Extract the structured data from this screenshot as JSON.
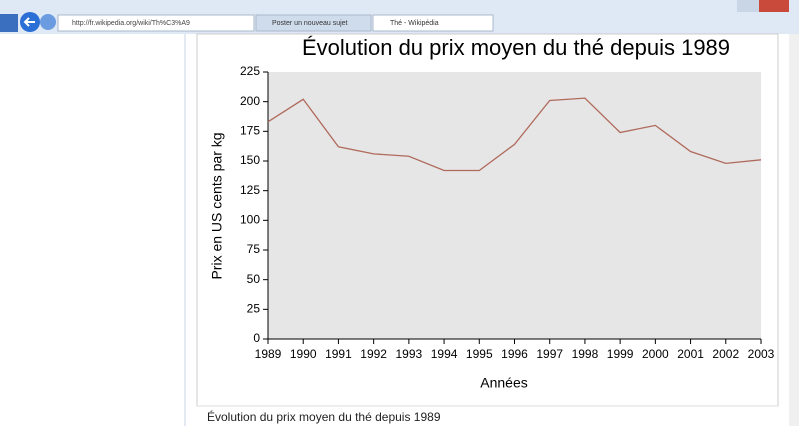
{
  "browser": {
    "url": "http://fr.wikipedia.org/wiki/Th%C3%A9",
    "tabs": [
      "Poster un nouveau sujet",
      "Thé - Wikipédia"
    ]
  },
  "caption": "Évolution du prix moyen du thé depuis 1989",
  "chart_data": {
    "type": "line",
    "title": "Évolution du prix moyen du thé depuis 1989",
    "x_label": "Années",
    "y_label": "Prix en US cents par kg",
    "x": [
      1989,
      1990,
      1991,
      1992,
      1993,
      1994,
      1995,
      1996,
      1997,
      1998,
      1999,
      2000,
      2001,
      2002,
      2003
    ],
    "values": [
      183,
      202,
      162,
      156,
      154,
      142,
      142,
      164,
      201,
      203,
      174,
      180,
      158,
      148,
      151
    ],
    "color": "#b06a5c",
    "xlim": [
      1989,
      2003
    ],
    "xticks": [
      1989,
      1990,
      1991,
      1992,
      1993,
      1994,
      1995,
      1996,
      1997,
      1998,
      1999,
      2000,
      2001,
      2002,
      2003
    ],
    "ylim": [
      0,
      225
    ],
    "yticks": [
      0,
      25,
      50,
      75,
      100,
      125,
      150,
      175,
      200,
      225
    ],
    "background": "#e6e6e6"
  }
}
